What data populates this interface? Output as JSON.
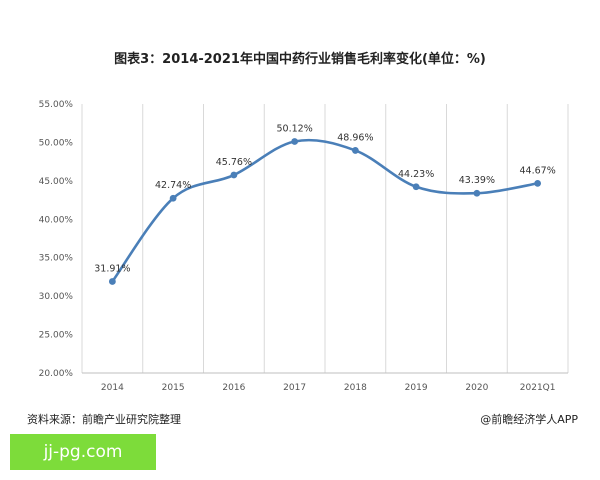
{
  "header": {
    "title": "图表3：2014-2021年中国中药行业销售毛利率变化(单位：%)"
  },
  "footer": {
    "source": "资料来源：前瞻产业研究院整理",
    "attribution": "@前瞻经济学人APP"
  },
  "badge": {
    "text": "jj-pg.com",
    "color": "#7ddc3a"
  },
  "chart_data": {
    "type": "line",
    "categories": [
      "2014",
      "2015",
      "2016",
      "2017",
      "2018",
      "2019",
      "2020",
      "2021Q1"
    ],
    "series": [
      {
        "values": [
          31.91,
          42.74,
          45.76,
          50.12,
          48.96,
          44.23,
          43.39,
          44.67
        ],
        "labels": [
          "31.91%",
          "42.74%",
          "45.76%",
          "50.12%",
          "48.96%",
          "44.23%",
          "43.39%",
          "44.67%"
        ],
        "color": "#4a7fb8"
      }
    ],
    "yticks": [
      "20.00%",
      "25.00%",
      "30.00%",
      "35.00%",
      "40.00%",
      "45.00%",
      "50.00%",
      "55.00%"
    ],
    "ylim": [
      20,
      55
    ],
    "grid": "vertical"
  }
}
